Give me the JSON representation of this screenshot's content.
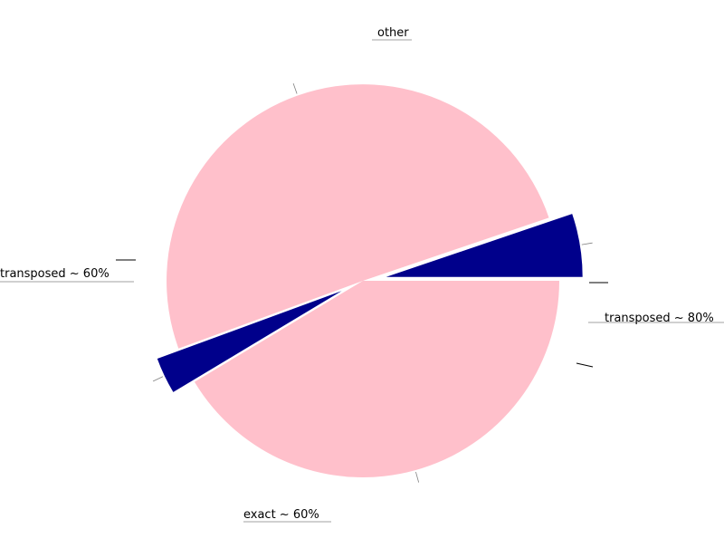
{
  "chart_data": {
    "type": "pie",
    "title": "",
    "start_angle_deg": 0,
    "direction": "counterclockwise",
    "slices": [
      {
        "label": "transposed ~ 80%",
        "value": 5.2,
        "color": "#00008b",
        "explode": 0.12
      },
      {
        "label": "other",
        "value": 50.4,
        "color": "#ffc0cb",
        "explode": 0.0
      },
      {
        "label": "transposed ~ 60%",
        "value": 3.0,
        "color": "#00008b",
        "explode": 0.12
      },
      {
        "label": "exact ~ 60%",
        "value": 41.4,
        "color": "#ffc0cb",
        "explode": 0.0
      }
    ]
  }
}
